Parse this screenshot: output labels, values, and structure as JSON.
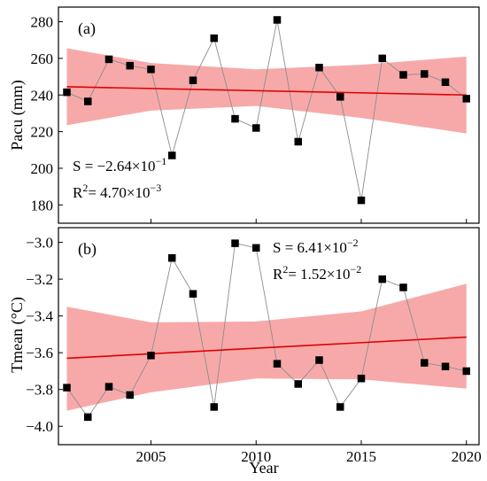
{
  "colors": {
    "band": "#f7a9a9",
    "trend": "#e00000",
    "series_line": "#8c8c8c",
    "marker": "#000000"
  },
  "chart_data": [
    {
      "type": "scatter",
      "panel_label": "(a)",
      "ylabel": "Pacu (mm)",
      "xlabel": "",
      "x": [
        2001,
        2002,
        2003,
        2004,
        2005,
        2006,
        2007,
        2008,
        2009,
        2010,
        2011,
        2012,
        2013,
        2014,
        2015,
        2016,
        2017,
        2018,
        2019,
        2020
      ],
      "values": [
        241.5,
        236.5,
        259.5,
        256,
        254,
        207,
        248,
        271,
        227,
        222,
        281,
        214.5,
        255,
        239,
        182.5,
        260,
        251,
        251.5,
        247,
        238
      ],
      "trend": {
        "start": [
          2001,
          244.5
        ],
        "end": [
          2020,
          240.0
        ]
      },
      "band": {
        "x": [
          2001,
          2005,
          2010,
          2015,
          2020
        ],
        "upper": [
          265.5,
          257.5,
          254.0,
          256.5,
          261.0
        ],
        "lower": [
          223.5,
          231.5,
          234.0,
          227.5,
          219.0
        ]
      },
      "xlim": [
        2000.6,
        2020.6
      ],
      "ylim": [
        170,
        288
      ],
      "xticks": [
        2005,
        2010,
        2015,
        2020
      ],
      "yticks": [
        180,
        200,
        220,
        240,
        260,
        280
      ],
      "ytick_labels": [
        "180",
        "200",
        "220",
        "240",
        "260",
        "280"
      ],
      "stats": {
        "slope_prefix": "S  = −2.64×10",
        "slope_exp": "−1",
        "r2_prefix": "R",
        "r2_sup": "2",
        "r2_mid": "= 4.70×10",
        "r2_exp": "−3"
      }
    },
    {
      "type": "scatter",
      "panel_label": "(b)",
      "ylabel": "Tmean (°C)",
      "xlabel": "Year",
      "x": [
        2001,
        2002,
        2003,
        2004,
        2005,
        2006,
        2007,
        2008,
        2009,
        2010,
        2011,
        2012,
        2013,
        2014,
        2015,
        2016,
        2017,
        2018,
        2019,
        2020
      ],
      "values": [
        -3.79,
        -3.95,
        -3.785,
        -3.83,
        -3.615,
        -3.085,
        -3.28,
        -3.895,
        -3.005,
        -3.03,
        -3.66,
        -3.77,
        -3.64,
        -3.895,
        -3.74,
        -3.2,
        -3.245,
        -3.655,
        -3.675,
        -3.7
      ],
      "trend": {
        "start": [
          2001,
          -3.63
        ],
        "end": [
          2020,
          -3.515
        ]
      },
      "band": {
        "x": [
          2001,
          2005,
          2010,
          2015,
          2020
        ],
        "upper": [
          -3.35,
          -3.435,
          -3.43,
          -3.375,
          -3.225
        ],
        "lower": [
          -3.915,
          -3.815,
          -3.74,
          -3.745,
          -3.795
        ]
      },
      "xlim": [
        2000.6,
        2020.6
      ],
      "ylim": [
        -4.1,
        -2.92
      ],
      "xticks": [
        2005,
        2010,
        2015,
        2020
      ],
      "xtick_labels": [
        "2005",
        "2010",
        "2015",
        "2020"
      ],
      "yticks": [
        -4.0,
        -3.8,
        -3.6,
        -3.4,
        -3.2,
        -3.0
      ],
      "ytick_labels": [
        "−4.0",
        "−3.8",
        "−3.6",
        "−3.4",
        "−3.2",
        "−3.0"
      ],
      "stats": {
        "slope_prefix": "S  = 6.41×10",
        "slope_exp": "−2",
        "r2_prefix": "R",
        "r2_sup": "2",
        "r2_mid": "= 1.52×10",
        "r2_exp": "−2"
      }
    }
  ]
}
